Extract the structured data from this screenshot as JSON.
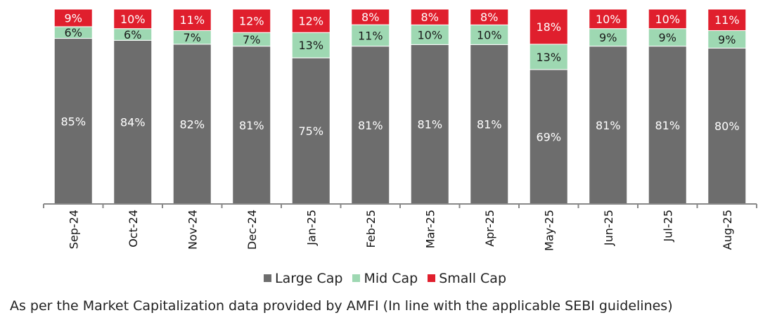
{
  "chart_data": {
    "type": "bar",
    "stacked": true,
    "categories": [
      "Sep-24",
      "Oct-24",
      "Nov-24",
      "Dec-24",
      "Jan-25",
      "Feb-25",
      "Mar-25",
      "Apr-25",
      "May-25",
      "Jun-25",
      "Jul-25",
      "Aug-25"
    ],
    "series": [
      {
        "name": "Large Cap",
        "values": [
          85,
          84,
          82,
          81,
          75,
          81,
          81,
          81,
          69,
          81,
          81,
          80
        ],
        "labels": [
          "85%",
          "84%",
          "82%",
          "81%",
          "75%",
          "81%",
          "81%",
          "81%",
          "69%",
          "81%",
          "81%",
          "80%"
        ],
        "color": "#6d6d6d"
      },
      {
        "name": "Mid Cap",
        "values": [
          6,
          6,
          7,
          7,
          13,
          11,
          10,
          10,
          13,
          9,
          9,
          9
        ],
        "labels": [
          "6%",
          "6%",
          "7%",
          "7%",
          "13%",
          "11%",
          "10%",
          "10%",
          "13%",
          "9%",
          "9%",
          "9%"
        ],
        "color": "#9ed8b2"
      },
      {
        "name": "Small Cap",
        "values": [
          9,
          10,
          11,
          12,
          12,
          8,
          8,
          8,
          18,
          10,
          10,
          11
        ],
        "labels": [
          "9%",
          "10%",
          "11%",
          "12%",
          "12%",
          "8%",
          "8%",
          "8%",
          "18%",
          "10%",
          "10%",
          "11%"
        ],
        "color": "#e01f2d"
      }
    ],
    "ylim": [
      0,
      100
    ],
    "grid": false,
    "legend_position": "bottom"
  },
  "footnote": "As per the Market Capitalization data provided by AMFI (In line with the applicable SEBI guidelines)"
}
